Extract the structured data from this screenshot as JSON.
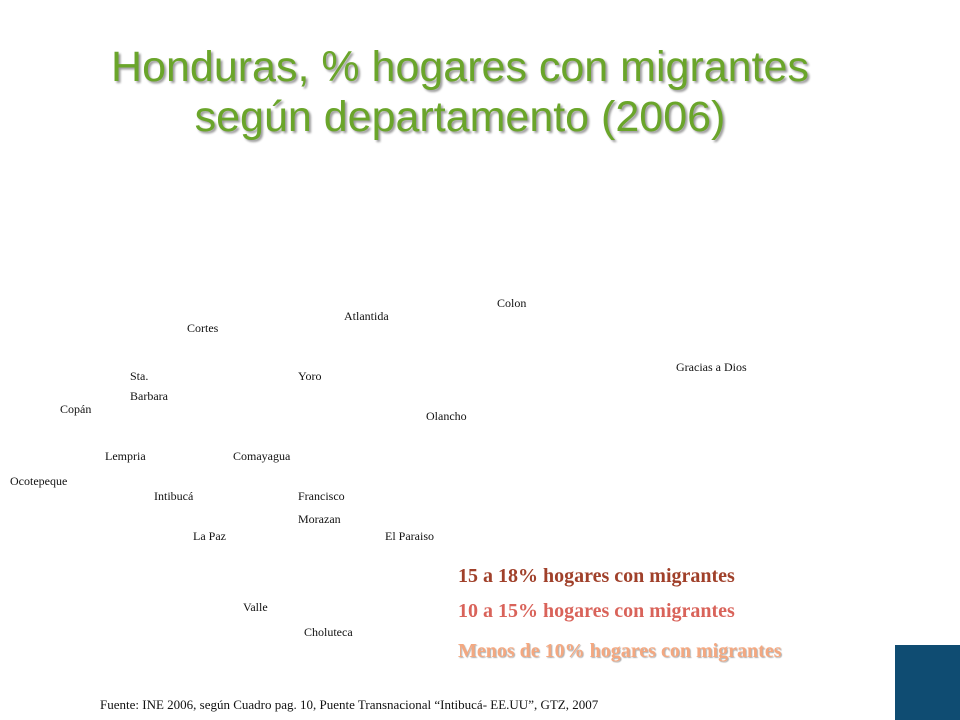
{
  "title": {
    "line1": "Honduras, % hogares con migrantes",
    "line2": "según departamento (2006)"
  },
  "departments": [
    {
      "id": "colon",
      "label": "Colon"
    },
    {
      "id": "atlantida",
      "label": "Atlantida"
    },
    {
      "id": "cortes",
      "label": "Cortes"
    },
    {
      "id": "gracias-a-dios",
      "label": "Gracias a Dios"
    },
    {
      "id": "sta-barbara-1",
      "label": "Sta."
    },
    {
      "id": "sta-barbara-2",
      "label": "Barbara"
    },
    {
      "id": "yoro",
      "label": "Yoro"
    },
    {
      "id": "copan",
      "label": "Copán"
    },
    {
      "id": "olancho",
      "label": "Olancho"
    },
    {
      "id": "lempira",
      "label": "Lempria"
    },
    {
      "id": "comayagua",
      "label": "Comayagua"
    },
    {
      "id": "ocotepeque",
      "label": "Ocotepeque"
    },
    {
      "id": "intibuca",
      "label": "Intibucá"
    },
    {
      "id": "francisco-1",
      "label": "Francisco"
    },
    {
      "id": "francisco-2",
      "label": "Morazan"
    },
    {
      "id": "la-paz",
      "label": "La Paz"
    },
    {
      "id": "el-paraiso",
      "label": "El Paraiso"
    },
    {
      "id": "valle",
      "label": "Valle"
    },
    {
      "id": "choluteca",
      "label": "Choluteca"
    }
  ],
  "legend": [
    {
      "label": "15 a 18%  hogares con migrantes",
      "color": "#a0402a"
    },
    {
      "label": "10 a 15% hogares con migrantes",
      "color": "#d9635a"
    },
    {
      "label": "Menos de 10% hogares con migrantes",
      "color": "#f4a880"
    }
  ],
  "source": "Fuente: INE 2006, según Cuadro pag. 10, Puente Transnacional  “Intibucá- EE.UU”, GTZ, 2007",
  "colors": {
    "title": "#6aa52a",
    "corner_box": "#0f4c72"
  }
}
